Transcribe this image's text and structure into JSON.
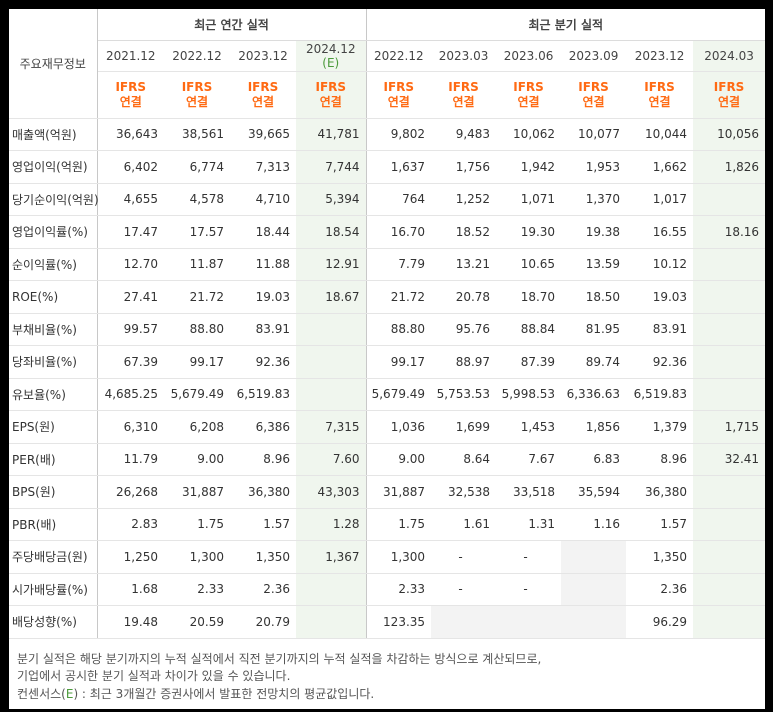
{
  "header": {
    "corner_label": "주요재무정보",
    "annual_group": "최근 연간 실적",
    "quarter_group": "최근 분기 실적",
    "estimate_mark": "(E)",
    "ifrs_line1": "IFRS",
    "ifrs_line2": "연결",
    "annual_periods": [
      "2021.12",
      "2022.12",
      "2023.12",
      "2024.12"
    ],
    "quarter_periods": [
      "2022.12",
      "2023.03",
      "2023.06",
      "2023.09",
      "2023.12",
      "2024.03"
    ]
  },
  "rows": [
    {
      "label": "매출액(억원)",
      "values": [
        "36,643",
        "38,561",
        "39,665",
        "41,781",
        "9,802",
        "9,483",
        "10,062",
        "10,077",
        "10,044",
        "10,056"
      ]
    },
    {
      "label": "영업이익(억원)",
      "values": [
        "6,402",
        "6,774",
        "7,313",
        "7,744",
        "1,637",
        "1,756",
        "1,942",
        "1,953",
        "1,662",
        "1,826"
      ]
    },
    {
      "label": "당기순이익(억원)",
      "values": [
        "4,655",
        "4,578",
        "4,710",
        "5,394",
        "764",
        "1,252",
        "1,071",
        "1,370",
        "1,017",
        ""
      ]
    },
    {
      "label": "영업이익률(%)",
      "values": [
        "17.47",
        "17.57",
        "18.44",
        "18.54",
        "16.70",
        "18.52",
        "19.30",
        "19.38",
        "16.55",
        "18.16"
      ]
    },
    {
      "label": "순이익률(%)",
      "values": [
        "12.70",
        "11.87",
        "11.88",
        "12.91",
        "7.79",
        "13.21",
        "10.65",
        "13.59",
        "10.12",
        ""
      ]
    },
    {
      "label": "ROE(%)",
      "values": [
        "27.41",
        "21.72",
        "19.03",
        "18.67",
        "21.72",
        "20.78",
        "18.70",
        "18.50",
        "19.03",
        ""
      ]
    },
    {
      "label": "부채비율(%)",
      "values": [
        "99.57",
        "88.80",
        "83.91",
        "",
        "88.80",
        "95.76",
        "88.84",
        "81.95",
        "83.91",
        ""
      ]
    },
    {
      "label": "당좌비율(%)",
      "values": [
        "67.39",
        "99.17",
        "92.36",
        "",
        "99.17",
        "88.97",
        "87.39",
        "89.74",
        "92.36",
        ""
      ]
    },
    {
      "label": "유보율(%)",
      "values": [
        "4,685.25",
        "5,679.49",
        "6,519.83",
        "",
        "5,679.49",
        "5,753.53",
        "5,998.53",
        "6,336.63",
        "6,519.83",
        ""
      ]
    },
    {
      "label": "EPS(원)",
      "values": [
        "6,310",
        "6,208",
        "6,386",
        "7,315",
        "1,036",
        "1,699",
        "1,453",
        "1,856",
        "1,379",
        "1,715"
      ]
    },
    {
      "label": "PER(배)",
      "values": [
        "11.79",
        "9.00",
        "8.96",
        "7.60",
        "9.00",
        "8.64",
        "7.67",
        "6.83",
        "8.96",
        "32.41"
      ]
    },
    {
      "label": "BPS(원)",
      "values": [
        "26,268",
        "31,887",
        "36,380",
        "43,303",
        "31,887",
        "32,538",
        "33,518",
        "35,594",
        "36,380",
        ""
      ]
    },
    {
      "label": "PBR(배)",
      "values": [
        "2.83",
        "1.75",
        "1.57",
        "1.28",
        "1.75",
        "1.61",
        "1.31",
        "1.16",
        "1.57",
        ""
      ]
    },
    {
      "label": "주당배당금(원)",
      "values": [
        "1,250",
        "1,300",
        "1,350",
        "1,367",
        "1,300",
        "-",
        "-",
        "",
        "1,350",
        ""
      ]
    },
    {
      "label": "시가배당률(%)",
      "values": [
        "1.68",
        "2.33",
        "2.36",
        "",
        "2.33",
        "-",
        "-",
        "",
        "2.36",
        ""
      ]
    },
    {
      "label": "배당성향(%)",
      "values": [
        "19.48",
        "20.59",
        "20.79",
        "",
        "123.35",
        "",
        "",
        "",
        "96.29",
        ""
      ]
    }
  ],
  "notes": {
    "line1": "분기 실적은 해당 분기까지의 누적 실적에서 직전 분기까지의 누적 실적을 차감하는 방식으로 계산되므로,",
    "line2": "기업에서 공시한 분기 실적과 차이가 있을 수 있습니다.",
    "line3_prefix": "컨센서스(",
    "line3_mark": "E",
    "line3_suffix": ") : 최근 3개월간 증권사에서 발표한 전망치의 평균값입니다."
  },
  "colors": {
    "ifrs_orange": "#ff6a13",
    "estimate_green": "#4b9a3b",
    "estimate_bg": "#f0f6ee",
    "empty_gray": "#f3f3f3"
  }
}
